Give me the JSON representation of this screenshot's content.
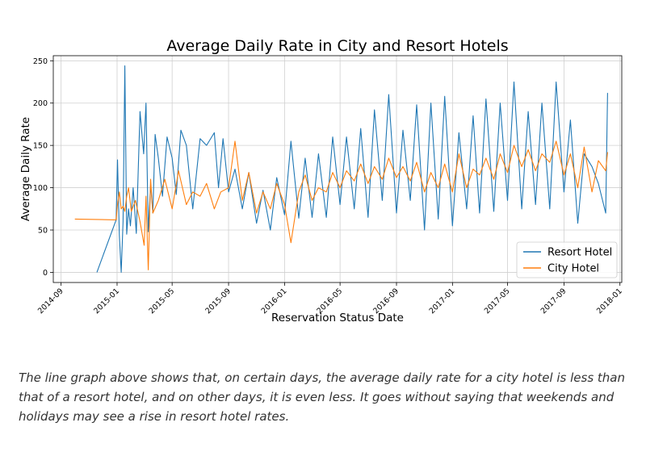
{
  "chart_data": {
    "type": "line",
    "title": "Average Daily Rate in City and Resort Hotels",
    "xlabel": "Reservation Status Date",
    "ylabel": "Average Daily Rate",
    "x_range": [
      "2014-08-15",
      "2018-01-05"
    ],
    "ylim": [
      -12,
      256
    ],
    "y_ticks": [
      0,
      50,
      100,
      150,
      200,
      250
    ],
    "x_ticks": [
      "2014-09",
      "2015-01",
      "2015-05",
      "2015-09",
      "2016-01",
      "2016-05",
      "2016-09",
      "2017-01",
      "2017-05",
      "2017-09",
      "2018-01"
    ],
    "grid": true,
    "legend": "lower right",
    "series": [
      {
        "name": "Resort Hotel",
        "color": "#1f77b4",
        "x": [
          "2014-11-18",
          "2014-12-30",
          "2015-01-02",
          "2015-01-06",
          "2015-01-10",
          "2015-01-14",
          "2015-01-18",
          "2015-01-22",
          "2015-01-26",
          "2015-01-30",
          "2015-02-05",
          "2015-02-12",
          "2015-02-20",
          "2015-02-28",
          "2015-03-05",
          "2015-03-10",
          "2015-03-15",
          "2015-03-20",
          "2015-03-25",
          "2015-04-01",
          "2015-04-10",
          "2015-04-20",
          "2015-05-01",
          "2015-05-10",
          "2015-05-20",
          "2015-06-01",
          "2015-06-15",
          "2015-07-01",
          "2015-07-15",
          "2015-08-01",
          "2015-08-10",
          "2015-08-20",
          "2015-09-01",
          "2015-09-15",
          "2015-10-01",
          "2015-10-15",
          "2015-11-01",
          "2015-11-15",
          "2015-12-01",
          "2015-12-15",
          "2016-01-01",
          "2016-01-15",
          "2016-02-01",
          "2016-02-15",
          "2016-03-01",
          "2016-03-15",
          "2016-04-01",
          "2016-04-15",
          "2016-05-01",
          "2016-05-15",
          "2016-06-01",
          "2016-06-15",
          "2016-07-01",
          "2016-07-15",
          "2016-08-01",
          "2016-08-15",
          "2016-09-01",
          "2016-09-15",
          "2016-10-01",
          "2016-10-15",
          "2016-11-01",
          "2016-11-15",
          "2016-12-01",
          "2016-12-15",
          "2017-01-01",
          "2017-01-15",
          "2017-02-01",
          "2017-02-15",
          "2017-03-01",
          "2017-03-15",
          "2017-04-01",
          "2017-04-15",
          "2017-05-01",
          "2017-05-15",
          "2017-06-01",
          "2017-06-15",
          "2017-07-01",
          "2017-07-15",
          "2017-08-01",
          "2017-08-15",
          "2017-09-01",
          "2017-09-15",
          "2017-10-01",
          "2017-10-15",
          "2017-11-01",
          "2017-11-15",
          "2017-12-01",
          "2017-12-05"
        ],
        "values": [
          0,
          62,
          133,
          44,
          0,
          60,
          244,
          45,
          75,
          55,
          100,
          46,
          190,
          140,
          200,
          48,
          103,
          70,
          163,
          135,
          90,
          160,
          135,
          92,
          168,
          150,
          75,
          158,
          150,
          165,
          100,
          158,
          95,
          122,
          75,
          118,
          58,
          97,
          50,
          112,
          68,
          155,
          64,
          135,
          65,
          140,
          65,
          160,
          80,
          160,
          75,
          170,
          65,
          192,
          85,
          210,
          70,
          168,
          85,
          198,
          50,
          200,
          63,
          208,
          55,
          165,
          75,
          185,
          70,
          205,
          72,
          200,
          85,
          225,
          75,
          190,
          80,
          200,
          75,
          225,
          95,
          180,
          58,
          140,
          125,
          105,
          70,
          212
        ]
      },
      {
        "name": "City Hotel",
        "color": "#ff7f0e",
        "x": [
          "2014-10-01",
          "2014-12-30",
          "2015-01-02",
          "2015-01-06",
          "2015-01-10",
          "2015-01-14",
          "2015-01-18",
          "2015-01-22",
          "2015-01-26",
          "2015-02-01",
          "2015-02-10",
          "2015-02-20",
          "2015-03-01",
          "2015-03-05",
          "2015-03-10",
          "2015-03-15",
          "2015-03-20",
          "2015-04-01",
          "2015-04-15",
          "2015-05-01",
          "2015-05-15",
          "2015-06-01",
          "2015-06-15",
          "2015-07-01",
          "2015-07-15",
          "2015-08-01",
          "2015-08-15",
          "2015-09-01",
          "2015-09-15",
          "2015-10-01",
          "2015-10-15",
          "2015-11-01",
          "2015-11-15",
          "2015-12-01",
          "2015-12-15",
          "2016-01-01",
          "2016-01-15",
          "2016-02-01",
          "2016-02-15",
          "2016-03-01",
          "2016-03-15",
          "2016-04-01",
          "2016-04-15",
          "2016-05-01",
          "2016-05-15",
          "2016-06-01",
          "2016-06-15",
          "2016-07-01",
          "2016-07-15",
          "2016-08-01",
          "2016-08-15",
          "2016-09-01",
          "2016-09-15",
          "2016-10-01",
          "2016-10-15",
          "2016-11-01",
          "2016-11-15",
          "2016-12-01",
          "2016-12-15",
          "2017-01-01",
          "2017-01-15",
          "2017-02-01",
          "2017-02-15",
          "2017-03-01",
          "2017-03-15",
          "2017-04-01",
          "2017-04-15",
          "2017-05-01",
          "2017-05-15",
          "2017-06-01",
          "2017-06-15",
          "2017-07-01",
          "2017-07-15",
          "2017-08-01",
          "2017-08-15",
          "2017-09-01",
          "2017-09-15",
          "2017-10-01",
          "2017-10-15",
          "2017-11-01",
          "2017-11-15",
          "2017-12-01",
          "2017-12-05"
        ],
        "values": [
          63,
          62,
          80,
          95,
          75,
          78,
          72,
          90,
          100,
          72,
          85,
          60,
          32,
          90,
          3,
          110,
          70,
          85,
          110,
          75,
          120,
          80,
          95,
          90,
          105,
          75,
          95,
          100,
          155,
          85,
          118,
          70,
          95,
          75,
          105,
          80,
          35,
          95,
          115,
          85,
          100,
          95,
          118,
          100,
          120,
          108,
          128,
          105,
          125,
          110,
          135,
          112,
          125,
          108,
          130,
          95,
          118,
          100,
          128,
          95,
          140,
          100,
          122,
          115,
          135,
          110,
          140,
          118,
          150,
          125,
          145,
          120,
          140,
          130,
          155,
          115,
          140,
          100,
          148,
          95,
          132,
          120,
          142
        ]
      }
    ]
  },
  "caption": "The line graph above shows that, on certain days, the average daily rate for a city hotel is less than that of a resort hotel, and on other days, it is even less. It goes without saying that weekends and holidays may see a rise in resort hotel rates."
}
